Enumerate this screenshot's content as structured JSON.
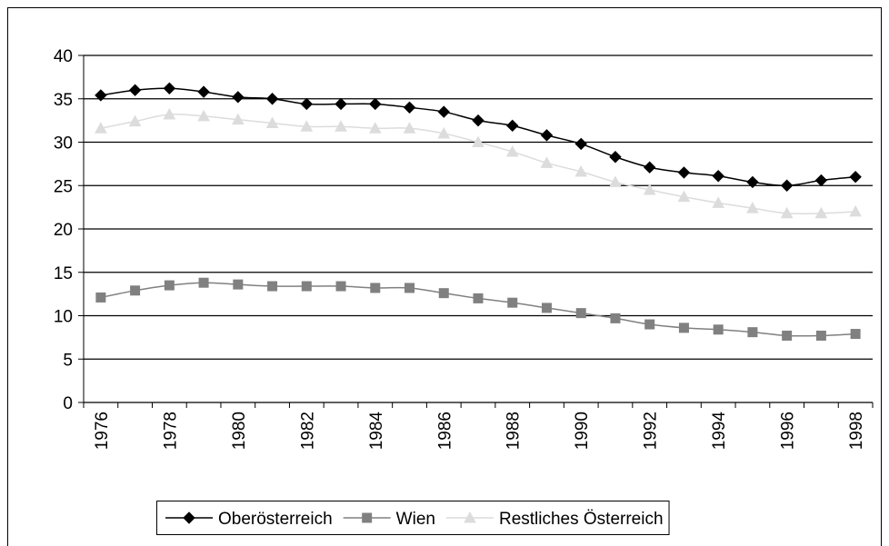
{
  "chart_data": {
    "type": "line",
    "categories": [
      "1976",
      null,
      "1978",
      null,
      "1980",
      null,
      "1982",
      null,
      "1984",
      null,
      "1986",
      null,
      "1988",
      null,
      "1990",
      null,
      "1992",
      null,
      "1994",
      null,
      "1996",
      null,
      "1998"
    ],
    "series": [
      {
        "name": "Oberösterreich",
        "color": "#000000",
        "marker": "diamond",
        "values": [
          35.4,
          36.0,
          36.2,
          35.8,
          35.2,
          35.0,
          34.4,
          34.4,
          34.4,
          34.0,
          33.5,
          32.5,
          31.9,
          30.8,
          29.8,
          28.3,
          27.1,
          26.5,
          26.1,
          25.4,
          25.0,
          25.6,
          26.0
        ]
      },
      {
        "name": "Wien",
        "color": "#808080",
        "marker": "square",
        "values": [
          12.1,
          12.9,
          13.5,
          13.8,
          13.6,
          13.4,
          13.4,
          13.4,
          13.2,
          13.2,
          12.6,
          12.0,
          11.5,
          10.9,
          10.3,
          9.7,
          9.0,
          8.6,
          8.4,
          8.1,
          7.7,
          7.7,
          7.9
        ]
      },
      {
        "name": "Restliches Österreich",
        "color": "#dcdcdc",
        "marker": "triangle",
        "values": [
          31.6,
          32.4,
          33.2,
          33.0,
          32.6,
          32.2,
          31.8,
          31.8,
          31.6,
          31.6,
          31.0,
          30.0,
          28.9,
          27.6,
          26.6,
          25.4,
          24.5,
          23.7,
          23.0,
          22.4,
          21.8,
          21.8,
          22.0
        ]
      }
    ],
    "ylim": [
      0,
      40
    ],
    "yticks": [
      0,
      5,
      10,
      15,
      20,
      25,
      30,
      35,
      40
    ],
    "grid": true,
    "legend": "bottom"
  }
}
